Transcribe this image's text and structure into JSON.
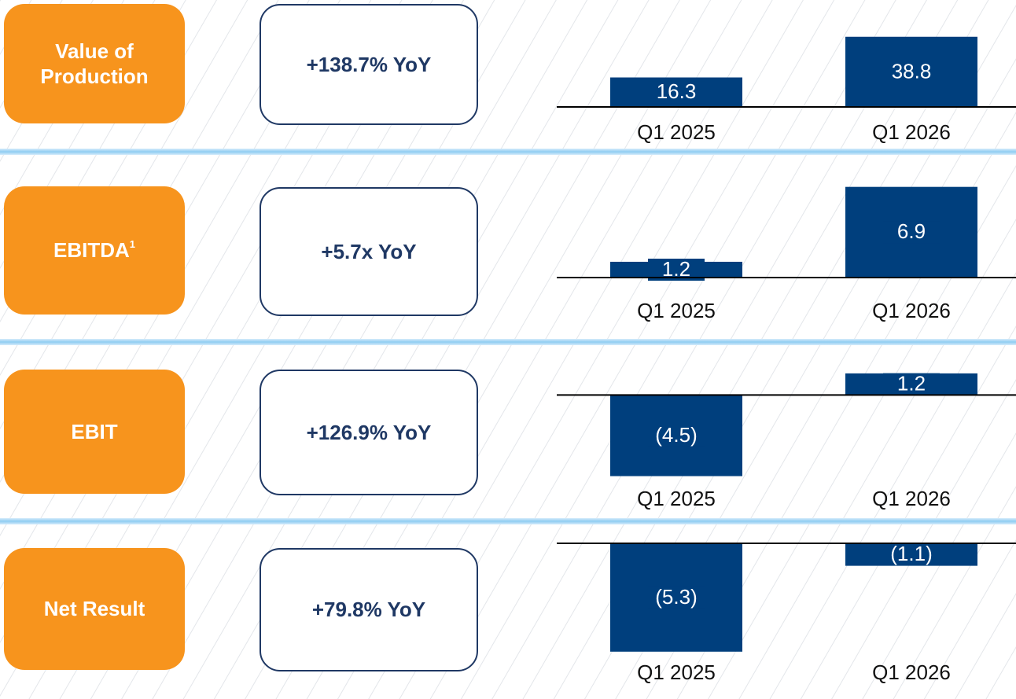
{
  "chart_data": [
    {
      "type": "bar",
      "title": "Value of Production",
      "annotation": "+138.7% YoY",
      "categories": [
        "Q1 2025",
        "Q1 2026"
      ],
      "values": [
        16.3,
        38.8
      ],
      "color": "#003f7d",
      "ylim": [
        0,
        40
      ]
    },
    {
      "type": "bar",
      "title": "EBITDA",
      "title_superscript": "1",
      "annotation": "+5.7x YoY",
      "categories": [
        "Q1 2025",
        "Q1 2026"
      ],
      "values": [
        1.2,
        6.9
      ],
      "color": "#003f7d",
      "ylim": [
        0,
        7
      ]
    },
    {
      "type": "bar",
      "title": "EBIT",
      "annotation": "+126.9% YoY",
      "categories": [
        "Q1 2025",
        "Q1 2026"
      ],
      "values": [
        -4.5,
        1.2
      ],
      "value_labels": [
        "(4.5)",
        "1.2"
      ],
      "color": "#003f7d",
      "ylim": [
        -5,
        1.5
      ]
    },
    {
      "type": "bar",
      "title": "Net Result",
      "annotation": "+79.8% YoY",
      "categories": [
        "Q1 2025",
        "Q1 2026"
      ],
      "values": [
        -5.3,
        -1.1
      ],
      "value_labels": [
        "(5.3)",
        "(1.1)"
      ],
      "color": "#003f7d",
      "ylim": [
        -5.5,
        0.5
      ]
    }
  ]
}
